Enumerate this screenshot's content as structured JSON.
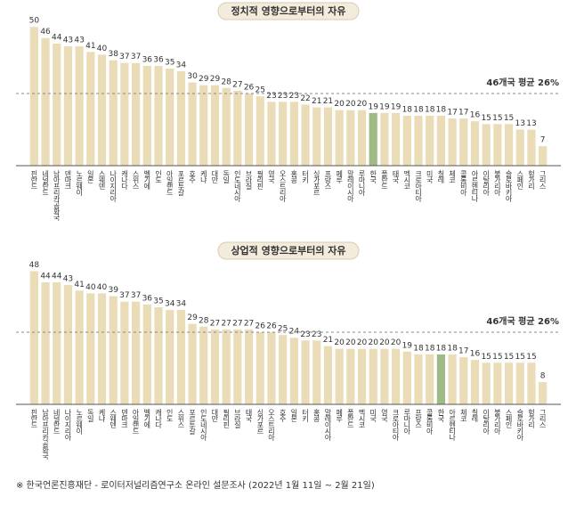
{
  "chart_data": [
    {
      "type": "bar",
      "title": "정치적 영향으로부터의 자유",
      "categories": [
        "핀란드",
        "네덜란드",
        "남아프리카공화국",
        "덴마크",
        "노르웨이",
        "일본",
        "스웨덴",
        "나이지리아",
        "캐나다",
        "스위스",
        "벨기에",
        "인도",
        "아일랜드",
        "포르투갈",
        "호주",
        "케냐",
        "대만",
        "독일",
        "인도네시아",
        "브라질",
        "필리핀",
        "영국",
        "오스트리아",
        "홍콩",
        "터키",
        "싱가포르",
        "프랑스",
        "페루",
        "말레이시아",
        "루마니아",
        "한국",
        "폴란드",
        "태국",
        "멕시코",
        "크로아티아",
        "미국",
        "칠레",
        "체코",
        "콜롬비아",
        "아르헨티나",
        "이탈리아",
        "불가리아",
        "슬로바키아",
        "스페인",
        "헝가리",
        "그리스"
      ],
      "values": [
        50,
        46,
        44,
        43,
        43,
        41,
        40,
        38,
        37,
        37,
        36,
        36,
        35,
        34,
        30,
        29,
        29,
        28,
        27,
        26,
        25,
        23,
        23,
        23,
        22,
        21,
        21,
        20,
        20,
        20,
        19,
        19,
        19,
        18,
        18,
        18,
        18,
        17,
        17,
        16,
        15,
        15,
        15,
        13,
        13,
        7
      ],
      "colors": [
        "#ebdcb8",
        "#ebdcb8",
        "#ebdcb8",
        "#ebdcb8",
        "#ebdcb8",
        "#ebdcb8",
        "#ebdcb8",
        "#ebdcb8",
        "#ebdcb8",
        "#ebdcb8",
        "#ebdcb8",
        "#ebdcb8",
        "#ebdcb8",
        "#ebdcb8",
        "#ebdcb8",
        "#ebdcb8",
        "#ebdcb8",
        "#ebdcb8",
        "#ebdcb8",
        "#ebdcb8",
        "#ebdcb8",
        "#ebdcb8",
        "#ebdcb8",
        "#ebdcb8",
        "#ebdcb8",
        "#ebdcb8",
        "#ebdcb8",
        "#ebdcb8",
        "#ebdcb8",
        "#ebdcb8",
        "#9fba85",
        "#ebdcb8",
        "#ebdcb8",
        "#ebdcb8",
        "#ebdcb8",
        "#ebdcb8",
        "#ebdcb8",
        "#ebdcb8",
        "#ebdcb8",
        "#ebdcb8",
        "#ebdcb8",
        "#ebdcb8",
        "#ebdcb8",
        "#ebdcb8",
        "#ebdcb8",
        "#ebdcb8"
      ],
      "average": 26,
      "average_label": "46개국 평균 26%",
      "ylim": [
        0,
        52
      ]
    },
    {
      "type": "bar",
      "title": "상업적 영향으로부터의 자유",
      "categories": [
        "핀란드",
        "남아프리카공화국",
        "네덜란드",
        "나이지리아",
        "노르웨이",
        "독일",
        "케냐",
        "스웨덴",
        "덴마크",
        "아일랜드",
        "벨기에",
        "캐나다",
        "인도",
        "스위스",
        "포르투갈",
        "인도네시아",
        "대만",
        "필리핀",
        "브라질",
        "태국",
        "싱가포르",
        "오스트리아",
        "호주",
        "일본",
        "터키",
        "홍콩",
        "말레이시아",
        "페루",
        "폴란드",
        "멕시코",
        "미국",
        "영국",
        "크로아티아",
        "루마니아",
        "프랑스",
        "콜롬비아",
        "한국",
        "아르헨티나",
        "체코",
        "칠레",
        "이탈리아",
        "불가리아",
        "스페인",
        "슬로바키아",
        "헝가리",
        "그리스"
      ],
      "values": [
        48,
        44,
        44,
        43,
        41,
        40,
        40,
        39,
        37,
        37,
        36,
        35,
        34,
        34,
        29,
        28,
        27,
        27,
        27,
        27,
        26,
        26,
        25,
        24,
        23,
        23,
        21,
        20,
        20,
        20,
        20,
        20,
        20,
        19,
        18,
        18,
        18,
        18,
        17,
        16,
        15,
        15,
        15,
        15,
        15,
        8
      ],
      "colors": [
        "#ebdcb8",
        "#ebdcb8",
        "#ebdcb8",
        "#ebdcb8",
        "#ebdcb8",
        "#ebdcb8",
        "#ebdcb8",
        "#ebdcb8",
        "#ebdcb8",
        "#ebdcb8",
        "#ebdcb8",
        "#ebdcb8",
        "#ebdcb8",
        "#ebdcb8",
        "#ebdcb8",
        "#ebdcb8",
        "#ebdcb8",
        "#ebdcb8",
        "#ebdcb8",
        "#ebdcb8",
        "#ebdcb8",
        "#ebdcb8",
        "#ebdcb8",
        "#ebdcb8",
        "#ebdcb8",
        "#ebdcb8",
        "#ebdcb8",
        "#ebdcb8",
        "#ebdcb8",
        "#ebdcb8",
        "#ebdcb8",
        "#ebdcb8",
        "#ebdcb8",
        "#ebdcb8",
        "#ebdcb8",
        "#ebdcb8",
        "#9fba85",
        "#ebdcb8",
        "#ebdcb8",
        "#ebdcb8",
        "#ebdcb8",
        "#ebdcb8",
        "#ebdcb8",
        "#ebdcb8",
        "#ebdcb8",
        "#ebdcb8"
      ],
      "average": 26,
      "average_label": "46개국 평균 26%",
      "ylim": [
        0,
        52
      ]
    }
  ],
  "footnote": "※ 한국언론진흥재단 - 로이터저널리즘연구소 온라인 설문조사 (2022년 1월 11일 ~ 2월 21일)"
}
